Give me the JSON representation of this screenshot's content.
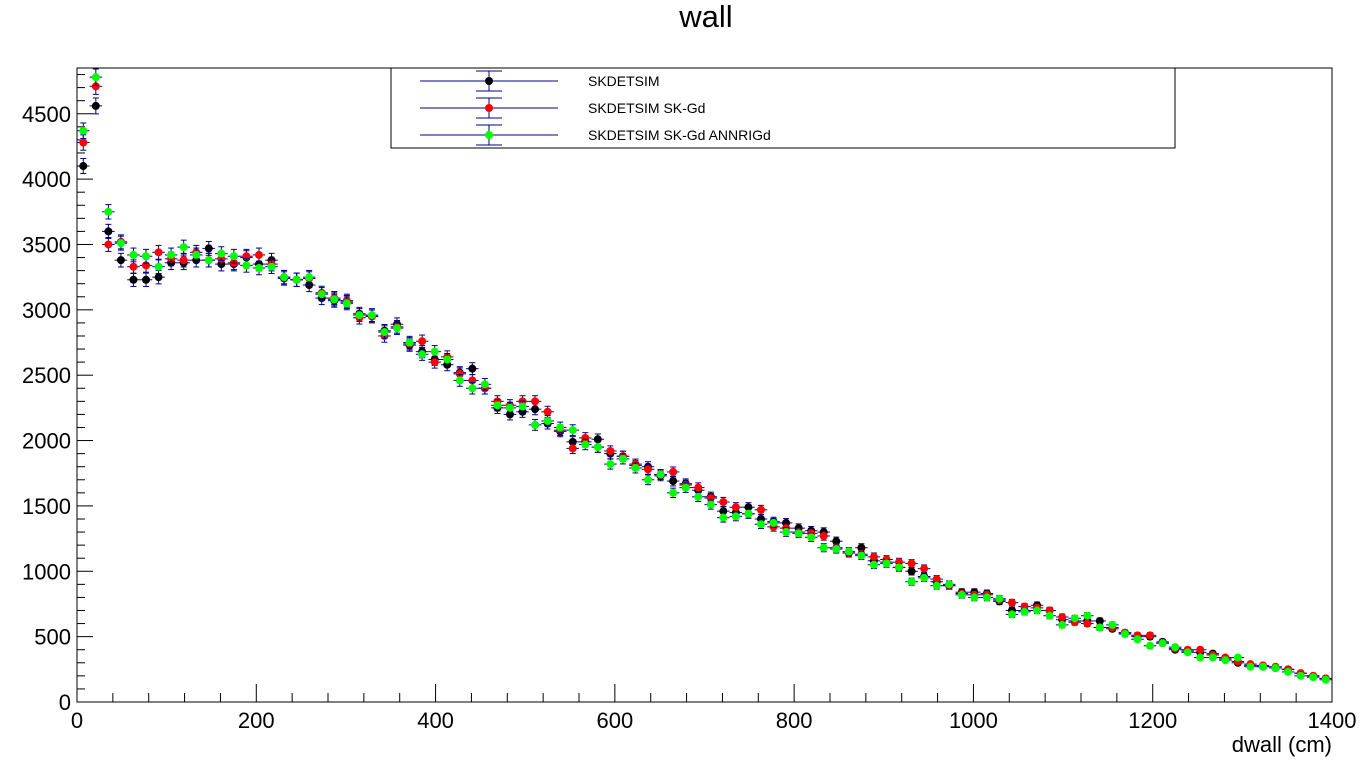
{
  "chart_data": {
    "type": "scatter",
    "title": "wall",
    "xlabel": "dwall (cm)",
    "ylabel": "",
    "xlim": [
      0,
      1400
    ],
    "ylim": [
      0,
      4850
    ],
    "xticks": [
      "0",
      "200",
      "400",
      "600",
      "800",
      "1000",
      "1200",
      "1400"
    ],
    "yticks": [
      "0",
      "500",
      "1000",
      "1500",
      "2000",
      "2500",
      "3000",
      "3500",
      "4000",
      "4500"
    ],
    "grid": false,
    "legend_position": "top-center",
    "bin_width": 14,
    "x": [
      7,
      21,
      35,
      49,
      63,
      77,
      91,
      105,
      119,
      133,
      147,
      161,
      175,
      189,
      203,
      217,
      231,
      245,
      259,
      273,
      287,
      301,
      315,
      329,
      343,
      357,
      371,
      385,
      399,
      413,
      427,
      441,
      455,
      469,
      483,
      497,
      511,
      525,
      539,
      553,
      567,
      581,
      595,
      609,
      623,
      637,
      651,
      665,
      679,
      693,
      707,
      721,
      735,
      749,
      763,
      777,
      791,
      805,
      819,
      833,
      847,
      861,
      875,
      889,
      903,
      917,
      931,
      945,
      959,
      973,
      987,
      1001,
      1015,
      1029,
      1043,
      1057,
      1071,
      1085,
      1099,
      1113,
      1127,
      1141,
      1155,
      1169,
      1183,
      1197,
      1211,
      1225,
      1239,
      1253,
      1267,
      1281,
      1295,
      1309,
      1323,
      1337,
      1351,
      1365,
      1379,
      1393
    ],
    "series": [
      {
        "name": "SKDETSIM",
        "color": "#000000",
        "values": [
          4100,
          4560,
          3600,
          3380,
          3230,
          3230,
          3250,
          3360,
          3360,
          3380,
          3470,
          3350,
          3350,
          3400,
          3350,
          3380,
          3240,
          3230,
          3190,
          3090,
          3070,
          3060,
          2970,
          2950,
          2840,
          2890,
          2730,
          2680,
          2620,
          2580,
          2520,
          2550,
          2400,
          2250,
          2200,
          2220,
          2240,
          2130,
          2070,
          1990,
          1990,
          2010,
          1900,
          1880,
          1810,
          1800,
          1730,
          1690,
          1670,
          1620,
          1570,
          1460,
          1450,
          1490,
          1400,
          1380,
          1370,
          1330,
          1310,
          1300,
          1230,
          1140,
          1180,
          1080,
          1070,
          1030,
          1000,
          960,
          920,
          890,
          840,
          840,
          830,
          770,
          700,
          700,
          740,
          700,
          630,
          620,
          620,
          620,
          560,
          530,
          500,
          500,
          460,
          400,
          390,
          380,
          370,
          330,
          300,
          280,
          270,
          260,
          250,
          220,
          200,
          180
        ]
      },
      {
        "name": "SKDETSIM SK-Gd",
        "color": "#ff0000",
        "values": [
          4280,
          4710,
          3500,
          3520,
          3330,
          3340,
          3440,
          3390,
          3380,
          3440,
          3380,
          3390,
          3360,
          3410,
          3420,
          3350,
          3250,
          3230,
          3240,
          3130,
          3090,
          3070,
          2940,
          2950,
          2800,
          2870,
          2740,
          2760,
          2600,
          2640,
          2510,
          2460,
          2400,
          2300,
          2270,
          2300,
          2300,
          2220,
          2080,
          1940,
          2020,
          1950,
          1920,
          1880,
          1820,
          1780,
          1740,
          1760,
          1660,
          1640,
          1560,
          1530,
          1490,
          1440,
          1470,
          1340,
          1330,
          1300,
          1290,
          1270,
          1180,
          1140,
          1130,
          1110,
          1090,
          1070,
          1060,
          1020,
          940,
          890,
          830,
          820,
          820,
          780,
          760,
          730,
          720,
          700,
          650,
          610,
          600,
          570,
          570,
          530,
          510,
          510,
          450,
          410,
          400,
          400,
          360,
          340,
          310,
          290,
          280,
          270,
          250,
          220,
          200,
          180
        ]
      },
      {
        "name": "SKDETSIM SK-Gd ANNRIGd",
        "color": "#00ff00",
        "values": [
          4370,
          4780,
          3750,
          3510,
          3420,
          3410,
          3330,
          3420,
          3480,
          3420,
          3380,
          3430,
          3410,
          3340,
          3320,
          3330,
          3250,
          3230,
          3250,
          3120,
          3080,
          3050,
          2960,
          2960,
          2830,
          2860,
          2750,
          2660,
          2680,
          2620,
          2460,
          2400,
          2430,
          2270,
          2250,
          2260,
          2120,
          2150,
          2100,
          2080,
          1970,
          1950,
          1820,
          1860,
          1790,
          1700,
          1740,
          1600,
          1640,
          1570,
          1510,
          1410,
          1420,
          1440,
          1360,
          1370,
          1300,
          1290,
          1260,
          1180,
          1170,
          1150,
          1120,
          1050,
          1060,
          1030,
          920,
          950,
          890,
          900,
          820,
          800,
          800,
          790,
          670,
          690,
          700,
          660,
          590,
          640,
          660,
          570,
          590,
          520,
          480,
          430,
          450,
          420,
          380,
          340,
          340,
          320,
          340,
          270,
          270,
          260,
          230,
          200,
          190,
          170
        ]
      }
    ]
  }
}
